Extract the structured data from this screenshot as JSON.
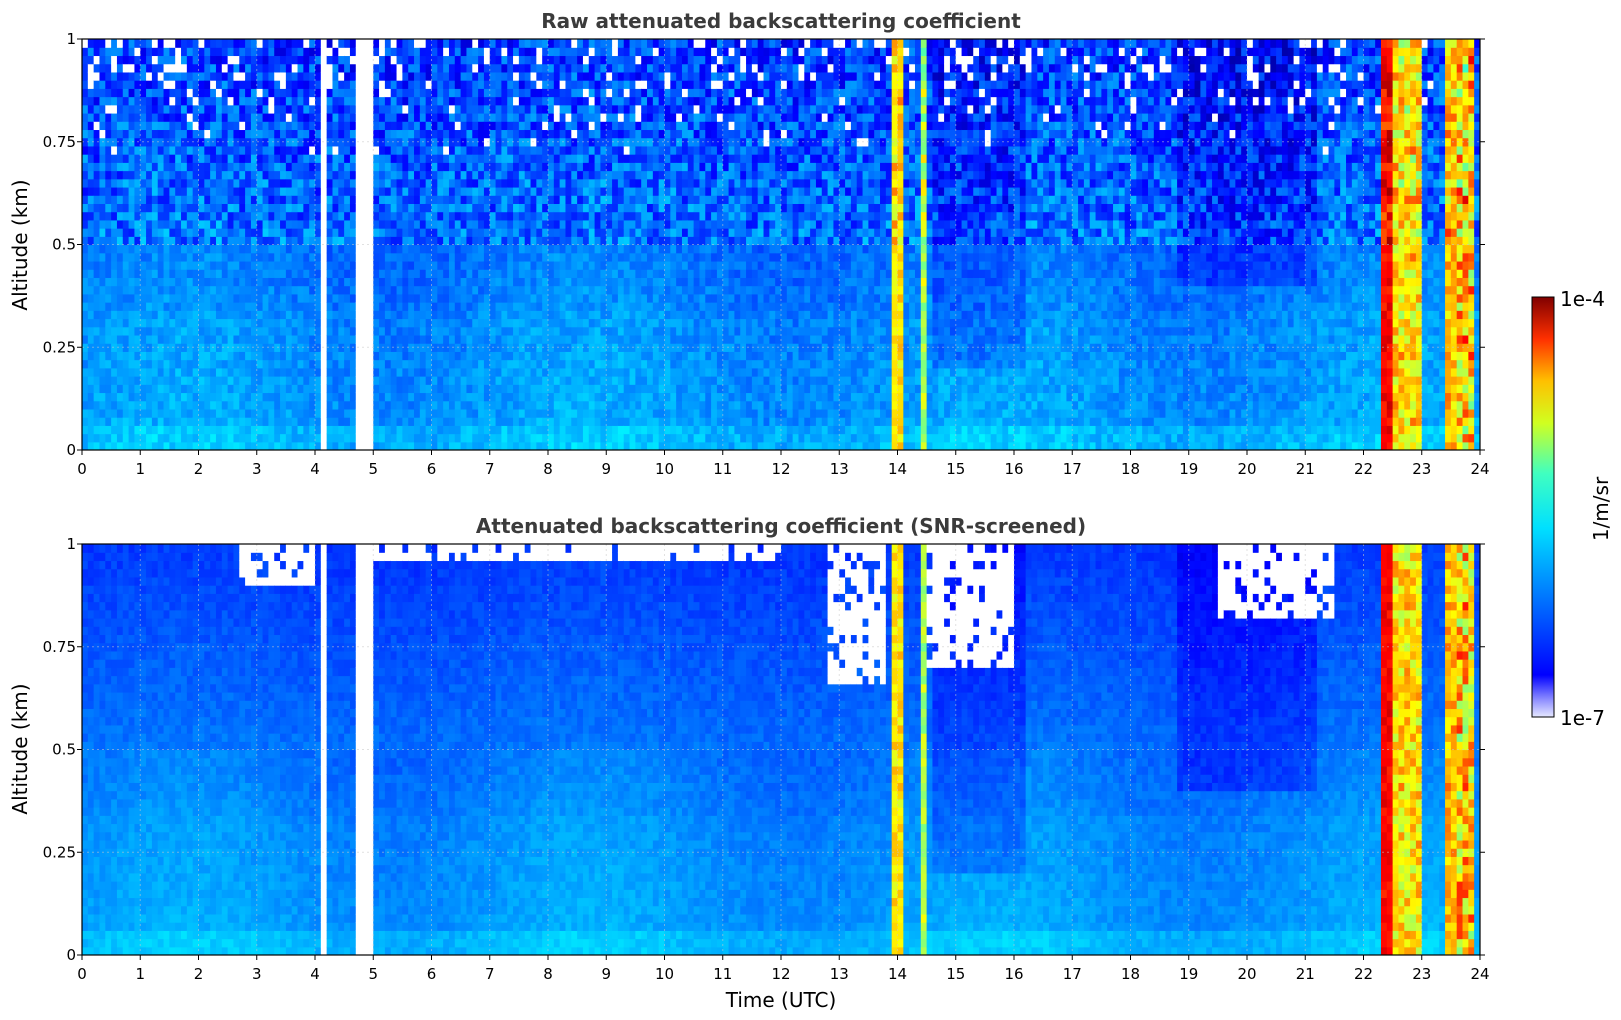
{
  "chart_data": [
    {
      "type": "heatmap",
      "title": "Raw attenuated backscattering coefficient",
      "xlabel": "",
      "ylabel": "Altitude (km)",
      "xlim": [
        0,
        24
      ],
      "ylim": [
        0,
        1
      ],
      "x_ticks": [
        "0",
        "1",
        "2",
        "3",
        "4",
        "5",
        "6",
        "7",
        "8",
        "9",
        "10",
        "11",
        "12",
        "13",
        "14",
        "15",
        "16",
        "17",
        "18",
        "19",
        "20",
        "21",
        "22",
        "23",
        "24"
      ],
      "y_ticks": [
        "0",
        "0.25",
        "0.5",
        "0.75",
        "1"
      ],
      "grid": true,
      "missing_data_intervals_utc": [
        [
          4.1,
          4.25
        ],
        [
          4.75,
          4.88
        ],
        [
          4.93,
          4.98
        ]
      ],
      "high_value_intervals_utc": [
        [
          13.85,
          14.1
        ],
        [
          14.4,
          14.5
        ],
        [
          22.35,
          23.0
        ],
        [
          23.4,
          23.95
        ]
      ],
      "noisy_upper_layer_from_km": 0.5,
      "screened": false
    },
    {
      "type": "heatmap",
      "title": "Attenuated backscattering coefficient (SNR-screened)",
      "xlabel": "Time (UTC)",
      "ylabel": "Altitude (km)",
      "xlim": [
        0,
        24
      ],
      "ylim": [
        0,
        1
      ],
      "x_ticks": [
        "0",
        "1",
        "2",
        "3",
        "4",
        "5",
        "6",
        "7",
        "8",
        "9",
        "10",
        "11",
        "12",
        "13",
        "14",
        "15",
        "16",
        "17",
        "18",
        "19",
        "20",
        "21",
        "22",
        "23",
        "24"
      ],
      "y_ticks": [
        "0",
        "0.25",
        "0.5",
        "0.75",
        "1"
      ],
      "grid": true,
      "missing_data_intervals_utc": [
        [
          4.1,
          4.25
        ],
        [
          4.75,
          4.88
        ],
        [
          4.93,
          4.98
        ]
      ],
      "high_value_intervals_utc": [
        [
          13.85,
          14.1
        ],
        [
          14.4,
          14.5
        ],
        [
          22.35,
          23.0
        ],
        [
          23.4,
          23.95
        ]
      ],
      "screened": true
    }
  ],
  "colorbar": {
    "label": "1/m/sr",
    "max_label": "1e-4",
    "min_label": "1e-7",
    "colormap": "jet",
    "scale": "log",
    "range": [
      1e-07,
      0.0001
    ]
  }
}
